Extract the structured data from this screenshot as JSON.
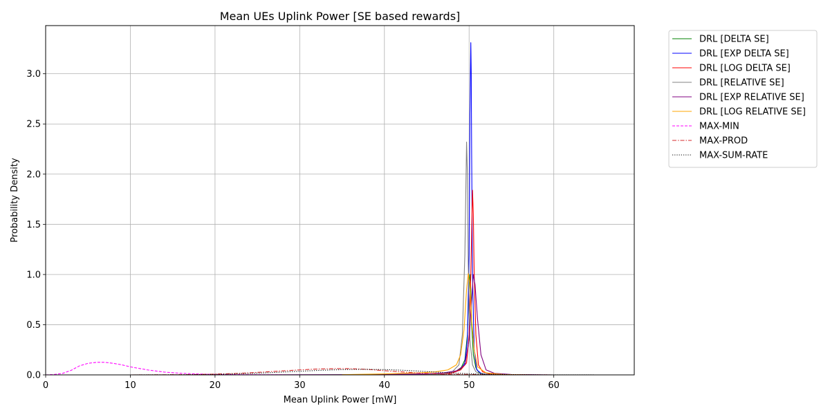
{
  "chart_data": {
    "type": "line",
    "title": "Mean UEs Uplink Power [SE based rewards]",
    "xlabel": "Mean Uplink Power [mW]",
    "ylabel": "Probability Density",
    "xlim": [
      0,
      69.5
    ],
    "ylim": [
      0,
      3.48
    ],
    "x_ticks": [
      0,
      10,
      20,
      30,
      40,
      50,
      60
    ],
    "y_ticks": [
      0.0,
      0.5,
      1.0,
      1.5,
      2.0,
      2.5,
      3.0
    ],
    "x_tick_labels": [
      "0",
      "10",
      "20",
      "30",
      "40",
      "50",
      "60"
    ],
    "y_tick_labels": [
      "0.0",
      "0.5",
      "1.0",
      "1.5",
      "2.0",
      "2.5",
      "3.0"
    ],
    "grid": true,
    "legend_position": "outside-right-top",
    "series": [
      {
        "name": "DRL [DELTA SE]",
        "color": "#008000",
        "dash": "solid",
        "x": [
          40,
          45,
          47,
          48,
          49,
          49.5,
          49.8,
          50,
          50.1,
          50.2,
          50.3,
          50.5,
          50.8,
          51.2,
          52,
          54,
          58
        ],
        "y": [
          0,
          0.002,
          0.008,
          0.02,
          0.06,
          0.15,
          0.4,
          0.9,
          1.0,
          0.85,
          0.5,
          0.2,
          0.07,
          0.02,
          0.005,
          0.001,
          0
        ]
      },
      {
        "name": "DRL [EXP DELTA SE]",
        "color": "#0000ff",
        "dash": "solid",
        "x": [
          40,
          45,
          47,
          48,
          49,
          49.5,
          49.8,
          50,
          50.1,
          50.2,
          50.25,
          50.3,
          50.4,
          50.6,
          50.9,
          51.5,
          53,
          58
        ],
        "y": [
          0,
          0.002,
          0.008,
          0.02,
          0.05,
          0.12,
          0.35,
          1.2,
          2.6,
          3.31,
          3.0,
          2.2,
          1.0,
          0.25,
          0.05,
          0.01,
          0.002,
          0
        ]
      },
      {
        "name": "DRL [LOG DELTA SE]",
        "color": "#ff0000",
        "dash": "solid",
        "x": [
          40,
          45,
          47,
          48,
          49,
          49.7,
          50,
          50.2,
          50.4,
          50.5,
          50.6,
          50.8,
          51.1,
          51.6,
          52.5,
          55,
          58
        ],
        "y": [
          0,
          0.002,
          0.008,
          0.02,
          0.05,
          0.12,
          0.4,
          1.0,
          1.84,
          1.6,
          1.0,
          0.4,
          0.1,
          0.03,
          0.008,
          0.001,
          0
        ]
      },
      {
        "name": "DRL [RELATIVE SE]",
        "color": "#808080",
        "dash": "solid",
        "x": [
          40,
          45,
          47,
          48,
          48.8,
          49.2,
          49.5,
          49.7,
          49.8,
          49.9,
          50.1,
          50.4,
          50.8,
          51.5,
          53,
          57
        ],
        "y": [
          0,
          0.002,
          0.01,
          0.03,
          0.1,
          0.4,
          1.2,
          2.32,
          2.0,
          1.1,
          0.35,
          0.1,
          0.03,
          0.008,
          0.002,
          0
        ]
      },
      {
        "name": "DRL [EXP RELATIVE SE]",
        "color": "#800080",
        "dash": "solid",
        "x": [
          0,
          20,
          30,
          35,
          40,
          45,
          47,
          48.5,
          49.5,
          50,
          50.3,
          50.5,
          50.7,
          51,
          51.4,
          52,
          53,
          55,
          60
        ],
        "y": [
          0,
          0,
          0.001,
          0.002,
          0.004,
          0.01,
          0.02,
          0.04,
          0.1,
          0.35,
          0.75,
          1.0,
          0.9,
          0.55,
          0.2,
          0.05,
          0.015,
          0.004,
          0
        ]
      },
      {
        "name": "DRL [LOG RELATIVE SE]",
        "color": "#ffa500",
        "dash": "solid",
        "x": [
          35,
          40,
          44,
          46,
          47.5,
          48.5,
          49,
          49.4,
          49.7,
          49.9,
          50.1,
          50.3,
          50.6,
          51,
          52,
          54,
          57
        ],
        "y": [
          0.002,
          0.01,
          0.02,
          0.03,
          0.05,
          0.1,
          0.2,
          0.45,
          0.85,
          1.01,
          0.9,
          0.55,
          0.25,
          0.08,
          0.02,
          0.004,
          0
        ]
      },
      {
        "name": "MAX-MIN",
        "color": "#ff00ff",
        "dash": "dashed",
        "x": [
          0,
          1,
          2,
          3,
          4,
          5,
          6,
          7,
          8,
          9,
          10,
          12,
          14,
          16,
          18,
          20,
          22,
          25,
          28,
          30,
          32,
          34
        ],
        "y": [
          0,
          0.004,
          0.015,
          0.045,
          0.09,
          0.115,
          0.125,
          0.125,
          0.115,
          0.1,
          0.08,
          0.05,
          0.028,
          0.016,
          0.009,
          0.005,
          0.003,
          0.002,
          0.001,
          0.0005,
          0.0002,
          0
        ]
      },
      {
        "name": "MAX-PROD",
        "color": "#d62728",
        "dash": "dashdot",
        "x": [
          10,
          15,
          18,
          20,
          22,
          24,
          26,
          28,
          30,
          32,
          34,
          35,
          36,
          38,
          40,
          42,
          44,
          46,
          48,
          50,
          52,
          55,
          60
        ],
        "y": [
          0,
          0.002,
          0.004,
          0.008,
          0.013,
          0.02,
          0.03,
          0.04,
          0.05,
          0.058,
          0.062,
          0.063,
          0.062,
          0.055,
          0.042,
          0.03,
          0.019,
          0.011,
          0.006,
          0.004,
          0.002,
          0.001,
          0
        ]
      },
      {
        "name": "MAX-SUM-RATE",
        "color": "#000000",
        "dash": "dotted",
        "x": [
          10,
          15,
          18,
          20,
          22,
          24,
          26,
          28,
          30,
          32,
          34,
          36,
          38,
          40,
          42,
          44,
          46,
          48,
          50,
          52,
          55,
          58,
          62,
          66
        ],
        "y": [
          0,
          0.001,
          0.003,
          0.005,
          0.009,
          0.014,
          0.02,
          0.028,
          0.036,
          0.044,
          0.05,
          0.054,
          0.055,
          0.053,
          0.047,
          0.038,
          0.028,
          0.019,
          0.012,
          0.007,
          0.003,
          0.001,
          0.0003,
          0
        ]
      }
    ]
  }
}
